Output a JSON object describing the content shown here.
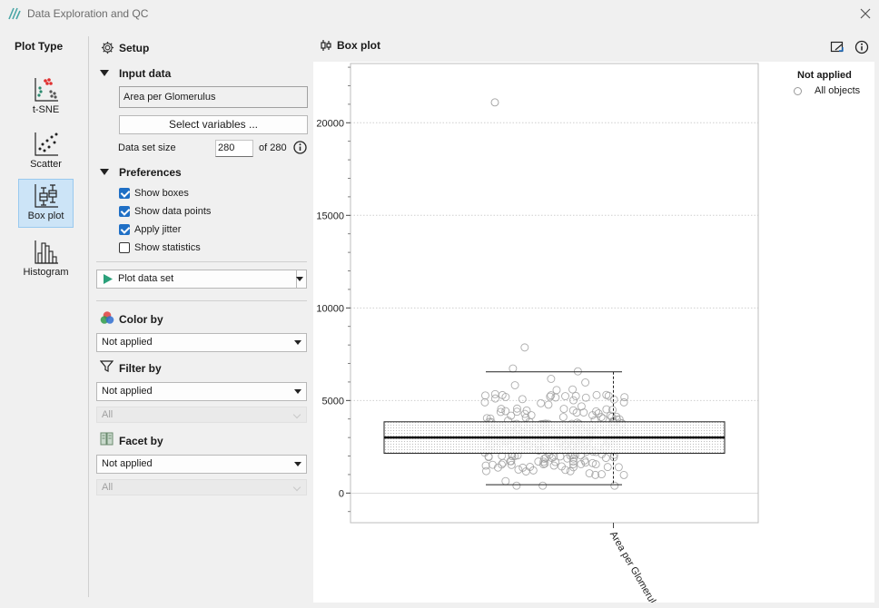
{
  "window": {
    "title": "Data Exploration and QC"
  },
  "plot_type": {
    "title": "Plot Type",
    "items": [
      {
        "label": "t-SNE",
        "active": false
      },
      {
        "label": "Scatter",
        "active": false
      },
      {
        "label": "Box plot",
        "active": true
      },
      {
        "label": "Histogram",
        "active": false
      }
    ]
  },
  "setup": {
    "title": "Setup",
    "input_data": {
      "header": "Input data",
      "variable": "Area per Glomerulus",
      "select_button": "Select variables ...",
      "dataset_size_label": "Data set size",
      "dataset_size_value": "280",
      "dataset_size_total": "of 280"
    },
    "preferences": {
      "header": "Preferences",
      "options": [
        {
          "label": "Show boxes",
          "checked": true
        },
        {
          "label": "Show data points",
          "checked": true
        },
        {
          "label": "Apply jitter",
          "checked": true
        },
        {
          "label": "Show statistics",
          "checked": false
        }
      ]
    },
    "plot_button": "Plot data set",
    "color_by": {
      "header": "Color by",
      "value": "Not applied"
    },
    "filter_by": {
      "header": "Filter by",
      "value": "Not applied",
      "sub_value": "All"
    },
    "facet_by": {
      "header": "Facet by",
      "value": "Not applied",
      "sub_value": "All"
    }
  },
  "plot": {
    "header": "Box plot",
    "legend_title": "Not applied",
    "legend_item": "All objects"
  },
  "chart_data": {
    "type": "box",
    "categories": [
      "Area per Glomerulus"
    ],
    "ylim": [
      -1600,
      23200
    ],
    "yticks": [
      0,
      5000,
      10000,
      15000,
      20000
    ],
    "ytick_labels": [
      "0",
      "5000",
      "10000",
      "15000",
      "20000"
    ],
    "grid": true,
    "box": {
      "whisker_low": 450,
      "q1": 2150,
      "median": 3000,
      "q3": 3850,
      "whisker_high": 6550
    },
    "outliers": [
      21100
    ],
    "n_points": 280,
    "point_range": [
      400,
      8200
    ],
    "colors": {
      "point_edge": "#9e9e9e",
      "box_fill_dots": "#d6d6d6",
      "grid": "#cfcfcf"
    }
  }
}
